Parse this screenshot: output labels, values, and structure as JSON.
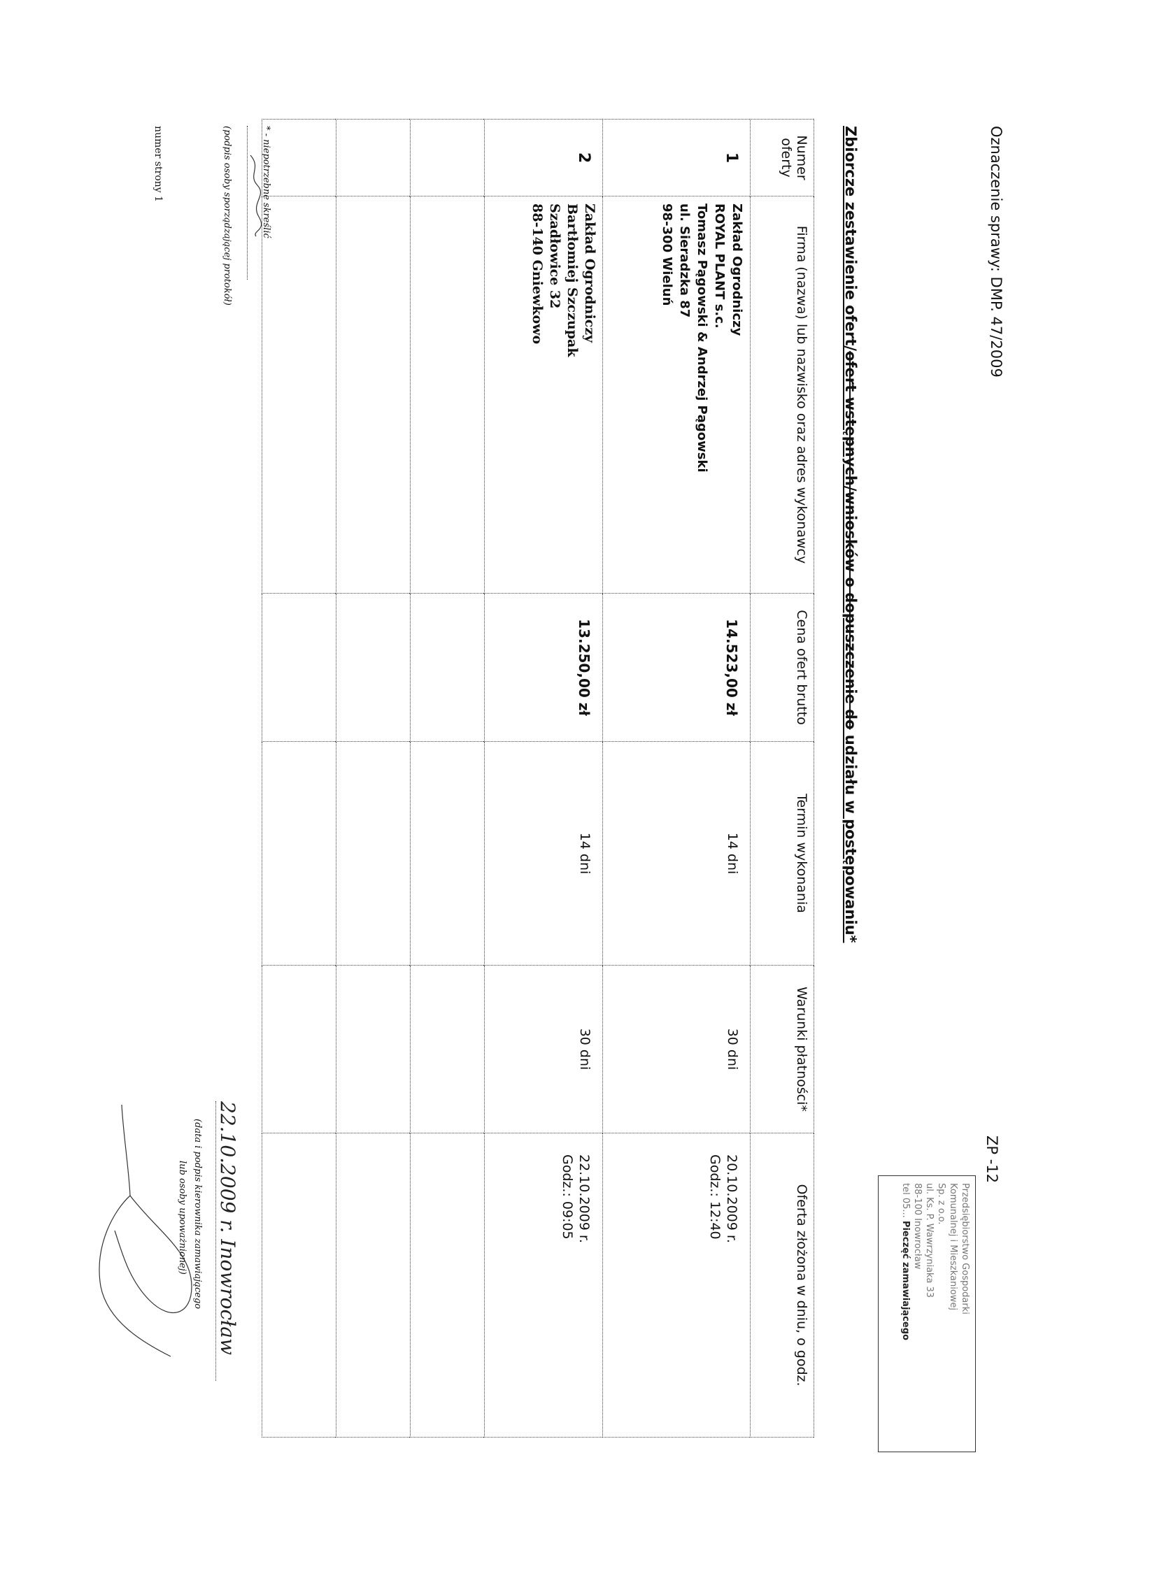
{
  "header": {
    "case_label": "Oznaczenie sprawy: DMP. 47/2009",
    "form_code": "ZP -12"
  },
  "title": {
    "prefix": "Zbiorcze zestawienie ofert/",
    "struck": "ofert wstępnych/wniosków o dopuszczenie do",
    "suffix": " udziału w postępowaniu*"
  },
  "stamp": {
    "lines": [
      "Przedsiębiorstwo Gospodarki",
      "Komunalnej i Mieszkaniowej",
      "Sp. z o.o.",
      "ul. Ks. P. Wawrzyniaka 33",
      "88-100 Inowrocław",
      "tel 05..."
    ],
    "label": "Pieczęć zamawiającego"
  },
  "table": {
    "columns": [
      "Numer oferty",
      "Firma (nazwa) lub nazwisko oraz adres wykonawcy",
      "Cena ofert brutto",
      "Termin wykonania",
      "Warunki płatności*",
      "Oferta złożona w dniu, o godz."
    ],
    "rows": [
      {
        "number": "1",
        "firm": [
          "Zakład Ogrodniczy",
          "ROYAL PLANT s.c.",
          "Tomasz Pągowski & Andrzej Pągowski",
          "ul. Sieradzka 87",
          "98-300 Wieluń"
        ],
        "price": "14.523,00 zł",
        "term": "14 dni",
        "payment": "30 dni",
        "submitted_date": "20.10.2009 r.",
        "submitted_time": "Godz.: 12:40"
      },
      {
        "number": "2",
        "firm": [
          "Zakład Ogrodniczy",
          "Bartłomiej Szczupak",
          "Szadłowice 32",
          "88-140 Gniewkowo"
        ],
        "price": "13.250,00 zł",
        "term": "14 dni",
        "payment": "30 dni",
        "submitted_date": "22.10.2009 r.",
        "submitted_time": "Godz.: 09:05"
      }
    ]
  },
  "footer": {
    "note": "* - niepotrzebne skreślić",
    "preparer_caption": "(podpis osoby sporządzającej protokół)",
    "date_handwritten": "22.10.2009 r. Inowrocław",
    "manager_caption_1": "(data i podpis kierownika zamawiającego",
    "manager_caption_2": "lub osoby upoważnionej)",
    "page_number": "numer strony 1"
  }
}
